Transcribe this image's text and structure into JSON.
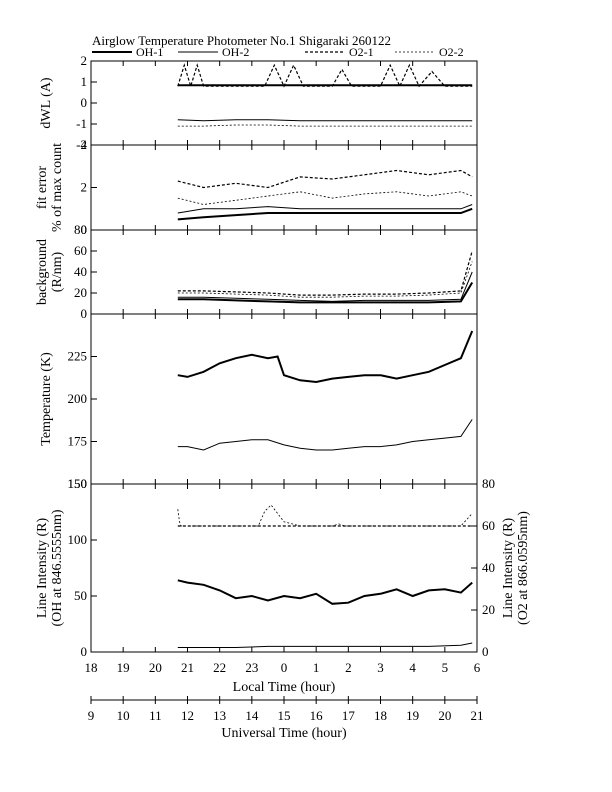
{
  "title": "Airglow Temperature Photometer No.1  Shigaraki  260122",
  "legend": [
    "OH-1",
    "OH-2",
    "O2-1",
    "O2-2"
  ],
  "colors": {
    "line": "#000000",
    "background": "#ffffff"
  },
  "x_axis_local": {
    "label": "Local Time (hour)",
    "ticks": [
      "18",
      "19",
      "20",
      "21",
      "22",
      "23",
      "0",
      "1",
      "2",
      "3",
      "4",
      "5",
      "6"
    ]
  },
  "x_axis_ut": {
    "label": "Universal Time (hour)",
    "ticks": [
      "9",
      "10",
      "11",
      "12",
      "13",
      "14",
      "15",
      "16",
      "17",
      "18",
      "19",
      "20",
      "21"
    ]
  },
  "panels": [
    {
      "id": "dwl",
      "ylabel": [
        "dWL (A)"
      ],
      "ticks": [
        "2",
        "1",
        "0",
        "-1",
        "-2"
      ]
    },
    {
      "id": "fit",
      "ylabel": [
        "fit error",
        "% of max count"
      ],
      "ticks": [
        "4",
        "2",
        "0"
      ]
    },
    {
      "id": "bg",
      "ylabel": [
        "background",
        "(R/nm)"
      ],
      "ticks": [
        "80",
        "60",
        "40",
        "20",
        "0"
      ]
    },
    {
      "id": "temp",
      "ylabel": [
        "Temperature (K)"
      ],
      "ticks": [
        "225",
        "200",
        "175",
        "150"
      ]
    },
    {
      "id": "int",
      "ylabel": [
        "Line Intensity (R)",
        "(OH at 846.5555nm)"
      ],
      "ticks": [
        "150",
        "100",
        "50",
        "0"
      ],
      "right_ylabel": [
        "Line Intensity (R)",
        "(O2 at 866.0595nm)"
      ],
      "right_ticks": [
        "80",
        "60",
        "40",
        "20",
        "0"
      ]
    }
  ],
  "chart_data": [
    {
      "type": "line",
      "panel": "dWL",
      "xlabel": "Local Time (hour)",
      "ylabel": "dWL (A)",
      "xlim": [
        18,
        30
      ],
      "ylim": [
        -2,
        2
      ],
      "series": [
        {
          "name": "OH-1",
          "x": [
            20.7,
            21.5,
            22.5,
            23.5,
            24.5,
            25.5,
            26.5,
            27.5,
            28.5,
            29.5,
            29.85
          ],
          "y": [
            0.85,
            0.85,
            0.85,
            0.85,
            0.85,
            0.85,
            0.85,
            0.85,
            0.85,
            0.85,
            0.85
          ]
        },
        {
          "name": "OH-2",
          "x": [
            20.7,
            21.5,
            22.5,
            23.5,
            24.5,
            25.5,
            26.5,
            27.5,
            28.5,
            29.5,
            29.85
          ],
          "y": [
            -0.8,
            -0.85,
            -0.8,
            -0.8,
            -0.85,
            -0.85,
            -0.85,
            -0.85,
            -0.85,
            -0.85,
            -0.85
          ]
        },
        {
          "name": "O2-1",
          "x": [
            20.7,
            20.9,
            21.1,
            21.3,
            21.5,
            22.0,
            23.4,
            23.7,
            24.0,
            24.3,
            24.6,
            25.5,
            25.8,
            26.1,
            27.0,
            27.3,
            27.6,
            27.9,
            28.2,
            28.6,
            29.0,
            29.85
          ],
          "y": [
            0.8,
            1.8,
            0.8,
            1.8,
            0.8,
            0.8,
            0.8,
            1.8,
            0.8,
            1.8,
            0.8,
            0.8,
            1.6,
            0.8,
            0.8,
            1.8,
            0.8,
            1.8,
            0.8,
            1.5,
            0.8,
            0.8
          ]
        },
        {
          "name": "O2-2",
          "x": [
            20.7,
            21.5,
            22.5,
            23.5,
            24.5,
            25.5,
            26.5,
            27.5,
            28.5,
            29.5,
            29.85
          ],
          "y": [
            -1.1,
            -1.1,
            -1.05,
            -1.05,
            -1.1,
            -1.1,
            -1.1,
            -1.1,
            -1.1,
            -1.1,
            -1.1
          ]
        }
      ]
    },
    {
      "type": "line",
      "panel": "fit error",
      "ylabel": "fit error % of max count",
      "xlim": [
        18,
        30
      ],
      "ylim": [
        0,
        4
      ],
      "series": [
        {
          "name": "OH-1",
          "x": [
            20.7,
            21.5,
            22.5,
            23.5,
            24.5,
            25.5,
            26.5,
            27.5,
            28.5,
            29.5,
            29.85
          ],
          "y": [
            0.5,
            0.6,
            0.7,
            0.8,
            0.8,
            0.8,
            0.8,
            0.8,
            0.8,
            0.8,
            1.0
          ]
        },
        {
          "name": "OH-2",
          "x": [
            20.7,
            21.5,
            22.5,
            23.5,
            24.5,
            25.5,
            26.5,
            27.5,
            28.5,
            29.5,
            29.85
          ],
          "y": [
            0.8,
            1.0,
            1.0,
            1.1,
            1.0,
            1.0,
            1.0,
            1.0,
            1.0,
            1.0,
            1.2
          ]
        },
        {
          "name": "O2-1",
          "x": [
            20.7,
            21.5,
            22.5,
            23.5,
            24.5,
            25.5,
            26.5,
            27.5,
            28.5,
            29.5,
            29.85
          ],
          "y": [
            2.3,
            2.0,
            2.2,
            2.0,
            2.5,
            2.4,
            2.6,
            2.8,
            2.6,
            2.8,
            2.5
          ]
        },
        {
          "name": "O2-2",
          "x": [
            20.7,
            21.5,
            22.5,
            23.5,
            24.5,
            25.5,
            26.5,
            27.5,
            28.5,
            29.5,
            29.85
          ],
          "y": [
            1.5,
            1.2,
            1.4,
            1.6,
            1.8,
            1.5,
            1.7,
            1.8,
            1.6,
            1.8,
            1.6
          ]
        }
      ]
    },
    {
      "type": "line",
      "panel": "background",
      "ylabel": "background (R/nm)",
      "xlim": [
        18,
        30
      ],
      "ylim": [
        0,
        80
      ],
      "series": [
        {
          "name": "OH-1",
          "x": [
            20.7,
            21.5,
            22.5,
            23.5,
            24.5,
            25.5,
            26.5,
            27.5,
            28.5,
            29.5,
            29.85
          ],
          "y": [
            14,
            14,
            13,
            12,
            11,
            11,
            11,
            11,
            11,
            12,
            30
          ]
        },
        {
          "name": "OH-2",
          "x": [
            20.7,
            21.5,
            22.5,
            23.5,
            24.5,
            25.5,
            26.5,
            27.5,
            28.5,
            29.5,
            29.85
          ],
          "y": [
            16,
            16,
            15,
            14,
            13,
            12,
            13,
            13,
            13,
            14,
            40
          ]
        },
        {
          "name": "O2-1",
          "x": [
            20.7,
            21.5,
            22.5,
            23.5,
            24.5,
            25.5,
            26.5,
            27.5,
            28.5,
            29.5,
            29.85
          ],
          "y": [
            22,
            22,
            21,
            20,
            18,
            18,
            19,
            19,
            20,
            22,
            60
          ]
        },
        {
          "name": "O2-2",
          "x": [
            20.7,
            21.5,
            22.5,
            23.5,
            24.5,
            25.5,
            26.5,
            27.5,
            28.5,
            29.5,
            29.85
          ],
          "y": [
            20,
            20,
            19,
            18,
            16,
            16,
            17,
            17,
            18,
            20,
            50
          ]
        }
      ]
    },
    {
      "type": "line",
      "panel": "Temperature",
      "ylabel": "Temperature (K)",
      "xlim": [
        18,
        30
      ],
      "ylim": [
        150,
        250
      ],
      "series": [
        {
          "name": "OH-1",
          "x": [
            20.7,
            21.0,
            21.5,
            22.0,
            22.5,
            23.0,
            23.5,
            23.8,
            24.0,
            24.5,
            25.0,
            25.5,
            26.0,
            26.5,
            27.0,
            27.5,
            28.0,
            28.5,
            29.0,
            29.5,
            29.85
          ],
          "y": [
            214,
            213,
            216,
            221,
            224,
            226,
            224,
            225,
            214,
            211,
            210,
            212,
            213,
            214,
            214,
            212,
            214,
            216,
            220,
            224,
            240
          ]
        },
        {
          "name": "OH-2",
          "x": [
            20.7,
            21.0,
            21.5,
            22.0,
            22.5,
            23.0,
            23.5,
            24.0,
            24.5,
            25.0,
            25.5,
            26.0,
            26.5,
            27.0,
            27.5,
            28.0,
            28.5,
            29.0,
            29.5,
            29.85
          ],
          "y": [
            172,
            172,
            170,
            174,
            175,
            176,
            176,
            173,
            171,
            170,
            170,
            171,
            172,
            172,
            173,
            175,
            176,
            177,
            178,
            188
          ]
        }
      ]
    },
    {
      "type": "line",
      "panel": "Line Intensity",
      "ylabel": "Line Intensity (R) (OH at 846.5555nm)",
      "y2label": "Line Intensity (R) (O2 at 866.0595nm)",
      "xlim": [
        18,
        30
      ],
      "ylim": [
        0,
        150
      ],
      "y2lim": [
        0,
        80
      ],
      "series": [
        {
          "name": "OH-1",
          "axis": "left",
          "x": [
            20.7,
            21.0,
            21.5,
            22.0,
            22.5,
            23.0,
            23.5,
            24.0,
            24.5,
            25.0,
            25.5,
            26.0,
            26.5,
            27.0,
            27.5,
            28.0,
            28.5,
            29.0,
            29.5,
            29.85
          ],
          "y": [
            64,
            62,
            60,
            55,
            48,
            50,
            46,
            50,
            48,
            52,
            43,
            44,
            50,
            52,
            56,
            50,
            55,
            56,
            53,
            62
          ]
        },
        {
          "name": "OH-2",
          "axis": "left",
          "x": [
            20.7,
            21.5,
            22.5,
            23.5,
            24.5,
            25.5,
            26.5,
            27.5,
            28.5,
            29.5,
            29.85
          ],
          "y": [
            4,
            4,
            4,
            5,
            5,
            5,
            5,
            5,
            5,
            6,
            8
          ]
        },
        {
          "name": "O2-1",
          "axis": "right",
          "x": [
            20.7,
            21.5,
            22.5,
            23.5,
            24.5,
            25.5,
            26.5,
            27.5,
            28.5,
            29.5,
            29.85
          ],
          "y": [
            60,
            60,
            60,
            60,
            60,
            60,
            60,
            60,
            60,
            60,
            60
          ]
        },
        {
          "name": "O2-2",
          "axis": "right",
          "x": [
            20.7,
            20.75,
            20.8,
            21.5,
            22.5,
            22.9,
            23.2,
            23.4,
            23.6,
            24.0,
            24.5,
            25.0,
            25.5,
            25.7,
            25.9,
            26.5,
            27.5,
            28.5,
            29.5,
            29.85
          ],
          "y": [
            68,
            62,
            60,
            60,
            60,
            60,
            60,
            67,
            70,
            62,
            60,
            60,
            60,
            61,
            60,
            60,
            60,
            60,
            60,
            66
          ]
        }
      ]
    }
  ]
}
